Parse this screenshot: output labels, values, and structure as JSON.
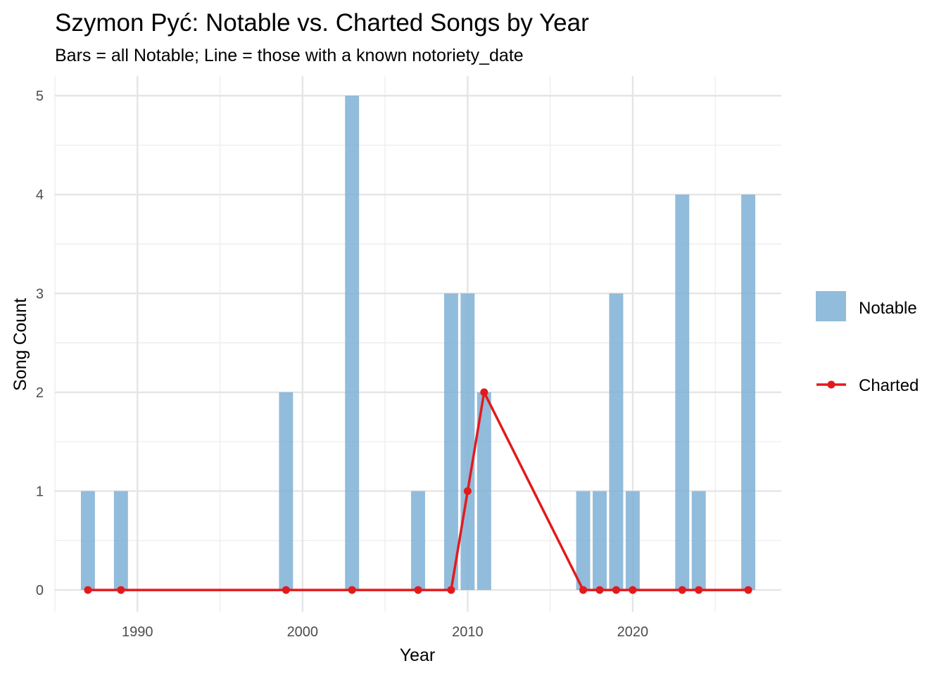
{
  "chart_data": {
    "type": "bar",
    "title": "Szymon Pyć: Notable vs. Charted Songs by Year",
    "subtitle": "Bars = all Notable; Line = those with a known notoriety_date",
    "xlabel": "Year",
    "ylabel": "Song Count",
    "xlim": [
      1985,
      2029
    ],
    "ylim": [
      -0.22,
      5.2
    ],
    "xticks": [
      1990,
      2000,
      2010,
      2020
    ],
    "yticks": [
      0,
      1,
      2,
      3,
      4,
      5
    ],
    "grid": true,
    "legend_position": "right",
    "bars": {
      "name": "Notable",
      "color": "#7fb0d5",
      "x": [
        1987,
        1989,
        1999,
        2003,
        2007,
        2009,
        2010,
        2011,
        2017,
        2018,
        2019,
        2020,
        2023,
        2024,
        2027
      ],
      "values": [
        1,
        1,
        2,
        5,
        1,
        3,
        3,
        2,
        1,
        1,
        3,
        1,
        4,
        1,
        4
      ]
    },
    "line": {
      "name": "Charted",
      "color": "#e31a1c",
      "x": [
        1987,
        1989,
        1999,
        2003,
        2007,
        2009,
        2010,
        2011,
        2017,
        2018,
        2019,
        2020,
        2023,
        2024,
        2027
      ],
      "values": [
        0,
        0,
        0,
        0,
        0,
        0,
        1,
        2,
        0,
        0,
        0,
        0,
        0,
        0,
        0
      ]
    }
  }
}
